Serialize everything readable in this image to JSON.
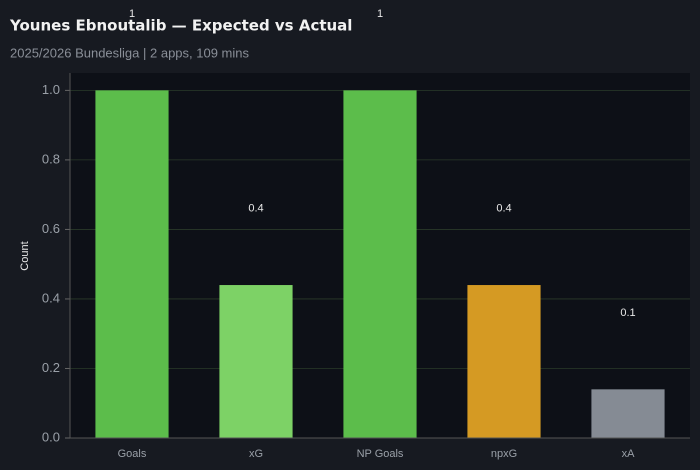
{
  "chart_data": {
    "type": "bar",
    "title": "Younes Ebnoutalib — Expected vs Actual",
    "subtitle": "2025/2026 Bundesliga | 2 apps, 109 mins",
    "y_label": "Count",
    "categories": [
      "Goals",
      "xG",
      "NP Goals",
      "npxG",
      "xA"
    ],
    "values": [
      1,
      0.44,
      1,
      0.44,
      0.14
    ],
    "value_labels": [
      "1",
      "0.4",
      "1",
      "0.4",
      "0.1"
    ],
    "colors": [
      "#5cbd4b",
      "#7dd266",
      "#5cbd4b",
      "#d59a23",
      "#858b94"
    ],
    "ylim": [
      0,
      1.05
    ],
    "yticks": [
      {
        "value": 0,
        "label": "0.0"
      },
      0.2,
      0.4,
      0.6,
      0.8,
      {
        "value": 1,
        "label": "1.0"
      }
    ],
    "grid": true
  }
}
